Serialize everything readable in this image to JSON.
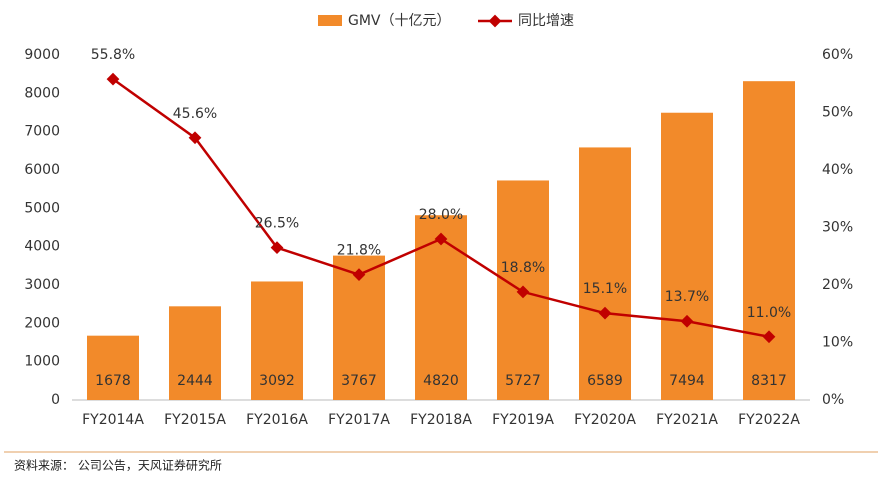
{
  "chart_data": {
    "type": "combo",
    "categories": [
      "FY2014A",
      "FY2015A",
      "FY2016A",
      "FY2017A",
      "FY2018A",
      "FY2019A",
      "FY2020A",
      "FY2021A",
      "FY2022A"
    ],
    "series": [
      {
        "name": "GMV（十亿元）",
        "type": "bar",
        "color": "#f28a2a",
        "values": [
          1678,
          2444,
          3092,
          3767,
          4820,
          5727,
          6589,
          7494,
          8317
        ]
      },
      {
        "name": "同比增速",
        "type": "line",
        "axis": "y2",
        "color": "#c00000",
        "values": [
          55.8,
          45.6,
          26.5,
          21.8,
          28.0,
          18.8,
          15.1,
          13.7,
          11.0
        ],
        "value_labels": [
          "55.8%",
          "45.6%",
          "26.5%",
          "21.8%",
          "28.0%",
          "18.8%",
          "15.1%",
          "13.7%",
          "11.0%"
        ]
      }
    ],
    "ylim": [
      0,
      9000
    ],
    "yticks": [
      0,
      1000,
      2000,
      3000,
      4000,
      5000,
      6000,
      7000,
      8000,
      9000
    ],
    "y2lim": [
      0,
      60
    ],
    "y2ticks": [
      {
        "value": 0,
        "label": "0%"
      },
      {
        "value": 10,
        "label": "10%"
      },
      {
        "value": 20,
        "label": "20%"
      },
      {
        "value": 30,
        "label": "30%"
      },
      {
        "value": 40,
        "label": "40%"
      },
      {
        "value": 50,
        "label": "50%"
      },
      {
        "value": 60,
        "label": "60%"
      }
    ],
    "legend": "top",
    "source": "资料来源：  公司公告，天风证券研究所"
  }
}
